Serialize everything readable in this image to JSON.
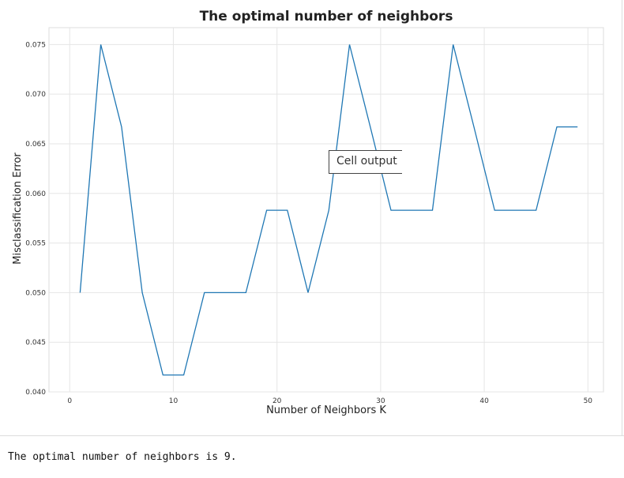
{
  "chart_data": {
    "type": "line",
    "title": "The optimal number of neighbors",
    "xlabel": "Number of Neighbors K",
    "ylabel": "Misclassification Error",
    "xlim": [
      -2,
      51.5
    ],
    "ylim": [
      0.04,
      0.0767
    ],
    "grid": true,
    "x_ticks": [
      0,
      10,
      20,
      30,
      40,
      50
    ],
    "x_tick_labels": [
      "0",
      "10",
      "20",
      "30",
      "40",
      "50"
    ],
    "y_ticks": [
      0.04,
      0.045,
      0.05,
      0.055,
      0.06,
      0.065,
      0.07,
      0.075
    ],
    "y_tick_labels": [
      "0.040",
      "0.045",
      "0.050",
      "0.055",
      "0.060",
      "0.065",
      "0.070",
      "0.075"
    ],
    "series": [
      {
        "color": "#1f77b4",
        "x": [
          1,
          3,
          5,
          7,
          9,
          11,
          13,
          15,
          17,
          19,
          21,
          23,
          25,
          27,
          29,
          31,
          33,
          35,
          37,
          39,
          41,
          43,
          45,
          47,
          49
        ],
        "y": [
          0.05,
          0.075,
          0.0667,
          0.05,
          0.0417,
          0.0417,
          0.05,
          0.05,
          0.05,
          0.0583,
          0.0583,
          0.05,
          0.0583,
          0.075,
          0.0667,
          0.0583,
          0.0583,
          0.0583,
          0.075,
          0.0667,
          0.0583,
          0.0583,
          0.0583,
          0.0667,
          0.0667
        ]
      }
    ]
  },
  "tooltip": {
    "text": "Cell output"
  },
  "output": {
    "text": "The optimal number of neighbors is 9."
  }
}
